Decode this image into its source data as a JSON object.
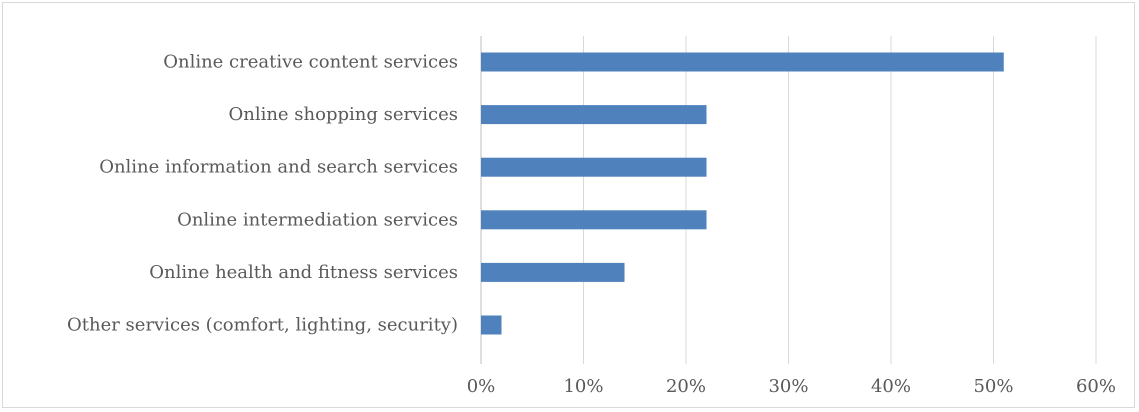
{
  "chart_data": {
    "type": "bar",
    "orientation": "horizontal",
    "categories": [
      "Online creative content services",
      "Online shopping services",
      "Online information and search services",
      "Online intermediation services",
      "Online health and fitness services",
      "Other services (comfort, lighting, security)"
    ],
    "values": [
      51,
      22,
      22,
      22,
      14,
      2
    ],
    "value_unit": "%",
    "xlim": [
      0,
      60
    ],
    "x_ticks": [
      "0%",
      "10%",
      "20%",
      "30%",
      "40%",
      "50%",
      "60%"
    ],
    "title": "",
    "xlabel": "",
    "ylabel": "",
    "grid": "vertical gridlines",
    "legend": "none",
    "bar_color": "#4f81bd"
  }
}
